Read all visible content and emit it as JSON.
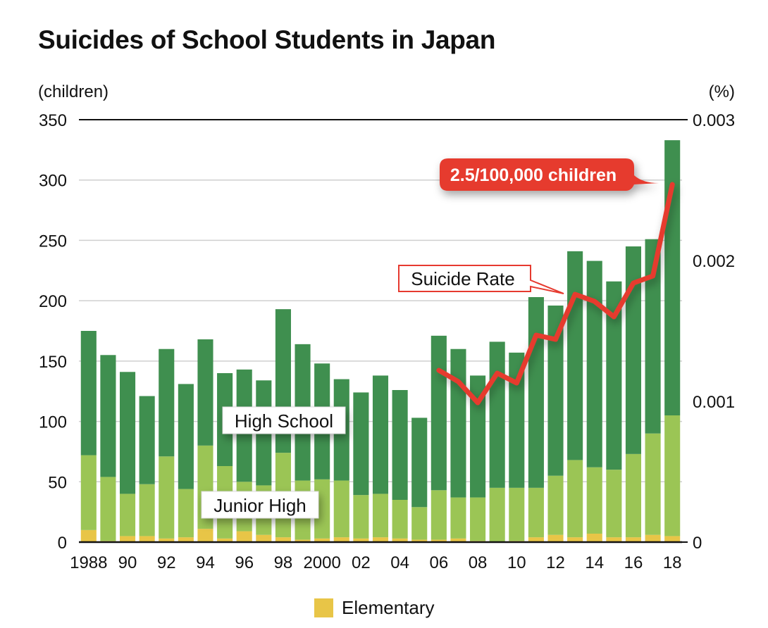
{
  "chart_data": {
    "type": "bar",
    "stacked": true,
    "title": "Suicides of School Students in Japan",
    "ylabel": "(children)",
    "y2label": "(%)",
    "ylim": [
      0,
      350
    ],
    "y2lim": [
      0,
      0.003
    ],
    "yticks": [
      "0",
      "50",
      "100",
      "150",
      "200",
      "250",
      "300",
      "350"
    ],
    "y2ticks": [
      "0",
      "0.001",
      "0.002",
      "0.003"
    ],
    "grid": true,
    "categories": [
      "1988",
      "89",
      "90",
      "91",
      "92",
      "93",
      "94",
      "95",
      "96",
      "97",
      "98",
      "99",
      "2000",
      "01",
      "02",
      "03",
      "04",
      "05",
      "06",
      "07",
      "08",
      "09",
      "10",
      "11",
      "12",
      "13",
      "14",
      "15",
      "16",
      "17",
      "18"
    ],
    "xtick_labels": [
      "1988",
      "",
      "90",
      "",
      "92",
      "",
      "94",
      "",
      "96",
      "",
      "98",
      "",
      "2000",
      "",
      "02",
      "",
      "04",
      "",
      "06",
      "",
      "08",
      "",
      "10",
      "",
      "12",
      "",
      "14",
      "",
      "16",
      "",
      "18"
    ],
    "series": [
      {
        "name": "Elementary",
        "color": "#e8c547",
        "values": [
          10,
          1,
          5,
          5,
          3,
          4,
          11,
          3,
          9,
          6,
          4,
          2,
          3,
          4,
          3,
          4,
          3,
          2,
          2,
          3,
          1,
          0,
          1,
          4,
          6,
          4,
          7,
          4,
          4,
          6,
          5
        ]
      },
      {
        "name": "Junior High",
        "color": "#9bc555",
        "values": [
          62,
          53,
          35,
          43,
          68,
          40,
          69,
          60,
          41,
          41,
          70,
          49,
          49,
          47,
          36,
          36,
          32,
          27,
          41,
          34,
          36,
          45,
          44,
          41,
          49,
          64,
          55,
          56,
          69,
          84,
          100
        ]
      },
      {
        "name": "High School",
        "color": "#3f8f4f",
        "values": [
          103,
          101,
          101,
          73,
          89,
          87,
          88,
          77,
          93,
          87,
          119,
          113,
          96,
          84,
          85,
          98,
          91,
          74,
          128,
          123,
          101,
          121,
          112,
          158,
          141,
          173,
          171,
          156,
          172,
          161,
          228
        ]
      }
    ],
    "line_series": {
      "name": "Suicide Rate",
      "color": "#e63a2f",
      "axis": "right",
      "categories": [
        "06",
        "07",
        "08",
        "09",
        "10",
        "11",
        "12",
        "13",
        "14",
        "15",
        "16",
        "17",
        "18"
      ],
      "values": [
        0.00122,
        0.00114,
        0.00099,
        0.0012,
        0.00113,
        0.00147,
        0.00144,
        0.00176,
        0.00171,
        0.0016,
        0.00184,
        0.00189,
        0.00254
      ]
    },
    "annotations": {
      "high_school": "High School",
      "junior_high": "Junior High",
      "suicide_rate": "Suicide Rate",
      "callout": "2.5/100,000 children"
    },
    "legend": [
      {
        "label": "Elementary",
        "color": "#e8c547"
      }
    ],
    "legend_position": "bottom"
  }
}
